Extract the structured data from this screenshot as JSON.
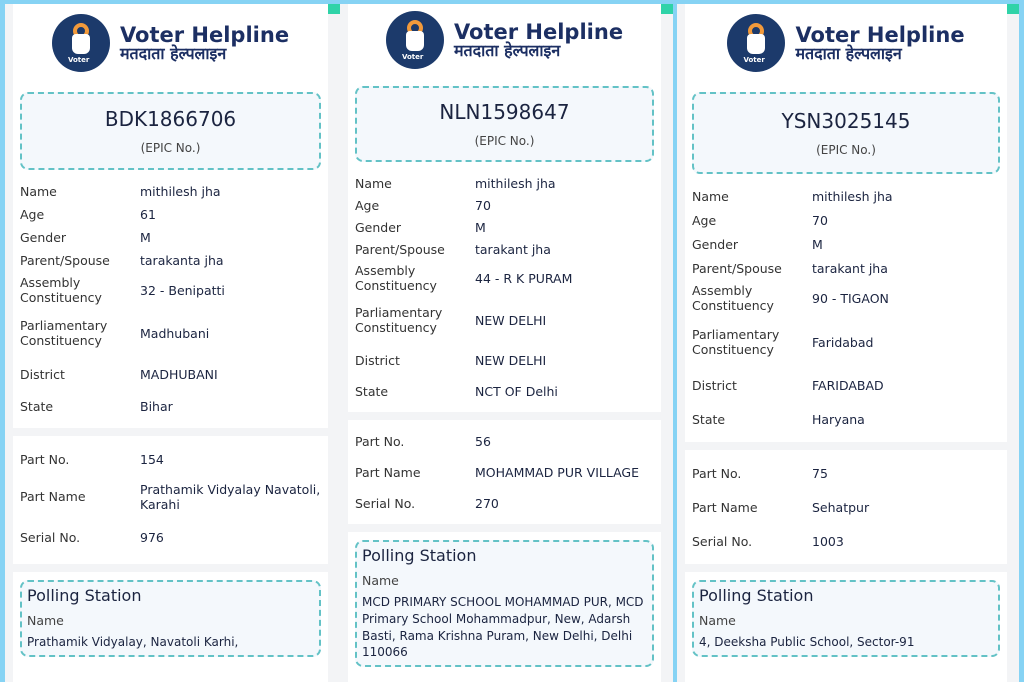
{
  "header": {
    "title_en": "Voter Helpline",
    "title_hi": "मतदाता हेल्पलाइन",
    "logo_text": "Voter"
  },
  "labels": {
    "epic": "(EPIC No.)",
    "name": "Name",
    "age": "Age",
    "gender": "Gender",
    "parent": "Parent/Spouse",
    "assembly": "Assembly Constituency",
    "parliamentary": "Parliamentary Constituency",
    "district": "District",
    "state": "State",
    "part_no": "Part No.",
    "part_name": "Part Name",
    "serial": "Serial No.",
    "polling_station": "Polling Station",
    "ps_name": "Name"
  },
  "colors": {
    "accent": "#63c2c6",
    "brand": "#1c3a6b",
    "background": "#86d3f4"
  },
  "cards": [
    {
      "epic": "BDK1866706",
      "name": "mithilesh jha",
      "age": "61",
      "gender": "M",
      "parent": "tarakanta jha",
      "assembly": "32 - Benipatti",
      "parliamentary": "Madhubani",
      "district": "MADHUBANI",
      "state": "Bihar",
      "part_no": "154",
      "part_name": "Prathamik Vidyalay Navatoli, Karahi",
      "serial": "976",
      "ps_name": "Prathamik Vidyalay, Navatoli Karhi,"
    },
    {
      "epic": "NLN1598647",
      "name": "mithilesh jha",
      "age": "70",
      "gender": "M",
      "parent": "tarakant jha",
      "assembly": "44 - R K PURAM",
      "parliamentary": "NEW DELHI",
      "district": "NEW DELHI",
      "state": "NCT OF Delhi",
      "part_no": "56",
      "part_name": "MOHAMMAD PUR VILLAGE",
      "serial": "270",
      "ps_name": "MCD PRIMARY SCHOOL MOHAMMAD PUR, MCD Primary School Mohammadpur, New, Adarsh Basti, Rama Krishna Puram, New Delhi, Delhi 110066"
    },
    {
      "epic": "YSN3025145",
      "name": "mithilesh jha",
      "age": "70",
      "gender": "M",
      "parent": "tarakant jha",
      "assembly": "90 - TIGAON",
      "parliamentary": "Faridabad",
      "district": "FARIDABAD",
      "state": "Haryana",
      "part_no": "75",
      "part_name": "Sehatpur",
      "serial": "1003",
      "ps_name": "4, Deeksha Public School, Sector-91"
    }
  ]
}
